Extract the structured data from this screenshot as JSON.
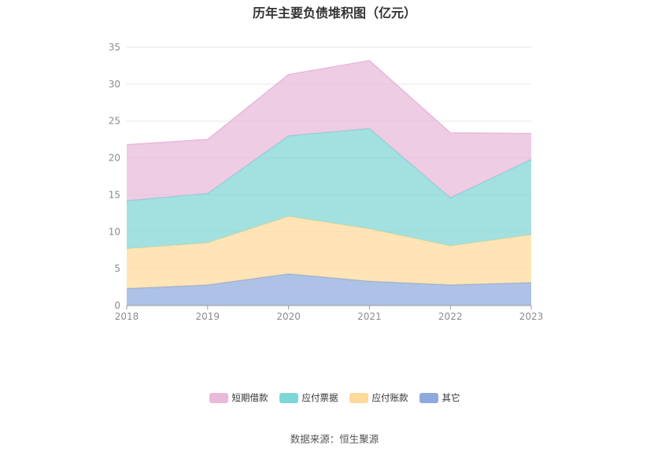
{
  "chart_data": {
    "type": "area",
    "stacked": true,
    "title": "历年主要负债堆积图（亿元）",
    "x": [
      "2018",
      "2019",
      "2020",
      "2021",
      "2022",
      "2023"
    ],
    "ylim": [
      0,
      35
    ],
    "yticks": [
      "0",
      "5",
      "10",
      "15",
      "20",
      "25",
      "30",
      "35"
    ],
    "grid": true,
    "legend_position": "bottom",
    "series": [
      {
        "name": "其它",
        "color": "#8eaadc",
        "values": [
          2.3,
          2.8,
          4.3,
          3.3,
          2.8,
          3.1
        ]
      },
      {
        "name": "应付账款",
        "color": "#fdd99a",
        "values": [
          5.4,
          5.7,
          7.8,
          7.1,
          5.3,
          6.5
        ]
      },
      {
        "name": "应付票据",
        "color": "#7fd6d6",
        "values": [
          6.5,
          6.7,
          10.9,
          13.6,
          6.5,
          10.2
        ]
      },
      {
        "name": "短期借款",
        "color": "#e8b9da",
        "values": [
          7.6,
          7.3,
          8.3,
          9.2,
          8.8,
          3.5
        ]
      }
    ],
    "legend_order": [
      "短期借款",
      "应付票据",
      "应付账款",
      "其它"
    ]
  },
  "footer": {
    "source": "数据来源：恒生聚源"
  }
}
